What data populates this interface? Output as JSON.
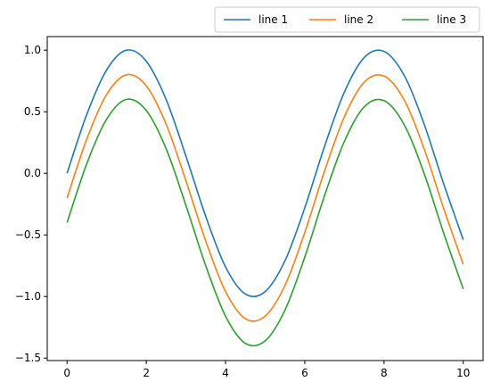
{
  "chart_data": {
    "type": "line",
    "title": "",
    "xlabel": "",
    "ylabel": "",
    "xlim": [
      -0.5,
      10.5
    ],
    "ylim": [
      -1.52,
      1.11
    ],
    "grid": false,
    "legend_placement": "top-right-outside",
    "legend_columns": 3,
    "x_ticks": [
      0,
      2,
      4,
      6,
      8,
      10
    ],
    "x_tick_labels": [
      "0",
      "2",
      "4",
      "6",
      "8",
      "10"
    ],
    "y_ticks": [
      -1.5,
      -1.0,
      -0.5,
      0.0,
      0.5,
      1.0
    ],
    "y_tick_labels": [
      "−1.5",
      "−1.0",
      "−0.5",
      "0.0",
      "0.5",
      "1.0"
    ],
    "x": [
      0,
      0.5,
      1,
      1.5,
      2,
      2.5,
      3,
      3.5,
      4,
      4.5,
      5,
      5.5,
      6,
      6.5,
      7,
      7.5,
      8,
      8.5,
      9,
      9.5,
      10
    ],
    "series": [
      {
        "name": "line 1",
        "color": "#1f77b4",
        "values": [
          0.0,
          0.48,
          0.84,
          1.0,
          0.91,
          0.6,
          0.14,
          -0.35,
          -0.76,
          -0.98,
          -0.96,
          -0.71,
          -0.28,
          0.22,
          0.66,
          0.94,
          0.99,
          0.8,
          0.41,
          -0.08,
          -0.54
        ]
      },
      {
        "name": "line 2",
        "color": "#ff7f0e",
        "values": [
          -0.2,
          0.28,
          0.64,
          0.8,
          0.71,
          0.4,
          -0.06,
          -0.55,
          -0.96,
          -1.18,
          -1.16,
          -0.91,
          -0.48,
          0.02,
          0.46,
          0.74,
          0.79,
          0.6,
          0.21,
          -0.28,
          -0.74
        ]
      },
      {
        "name": "line 3",
        "color": "#2ca02c",
        "values": [
          -0.4,
          0.08,
          0.44,
          0.6,
          0.51,
          0.2,
          -0.26,
          -0.75,
          -1.16,
          -1.38,
          -1.36,
          -1.11,
          -0.68,
          -0.18,
          0.26,
          0.54,
          0.59,
          0.4,
          0.01,
          -0.48,
          -0.94
        ]
      }
    ]
  }
}
